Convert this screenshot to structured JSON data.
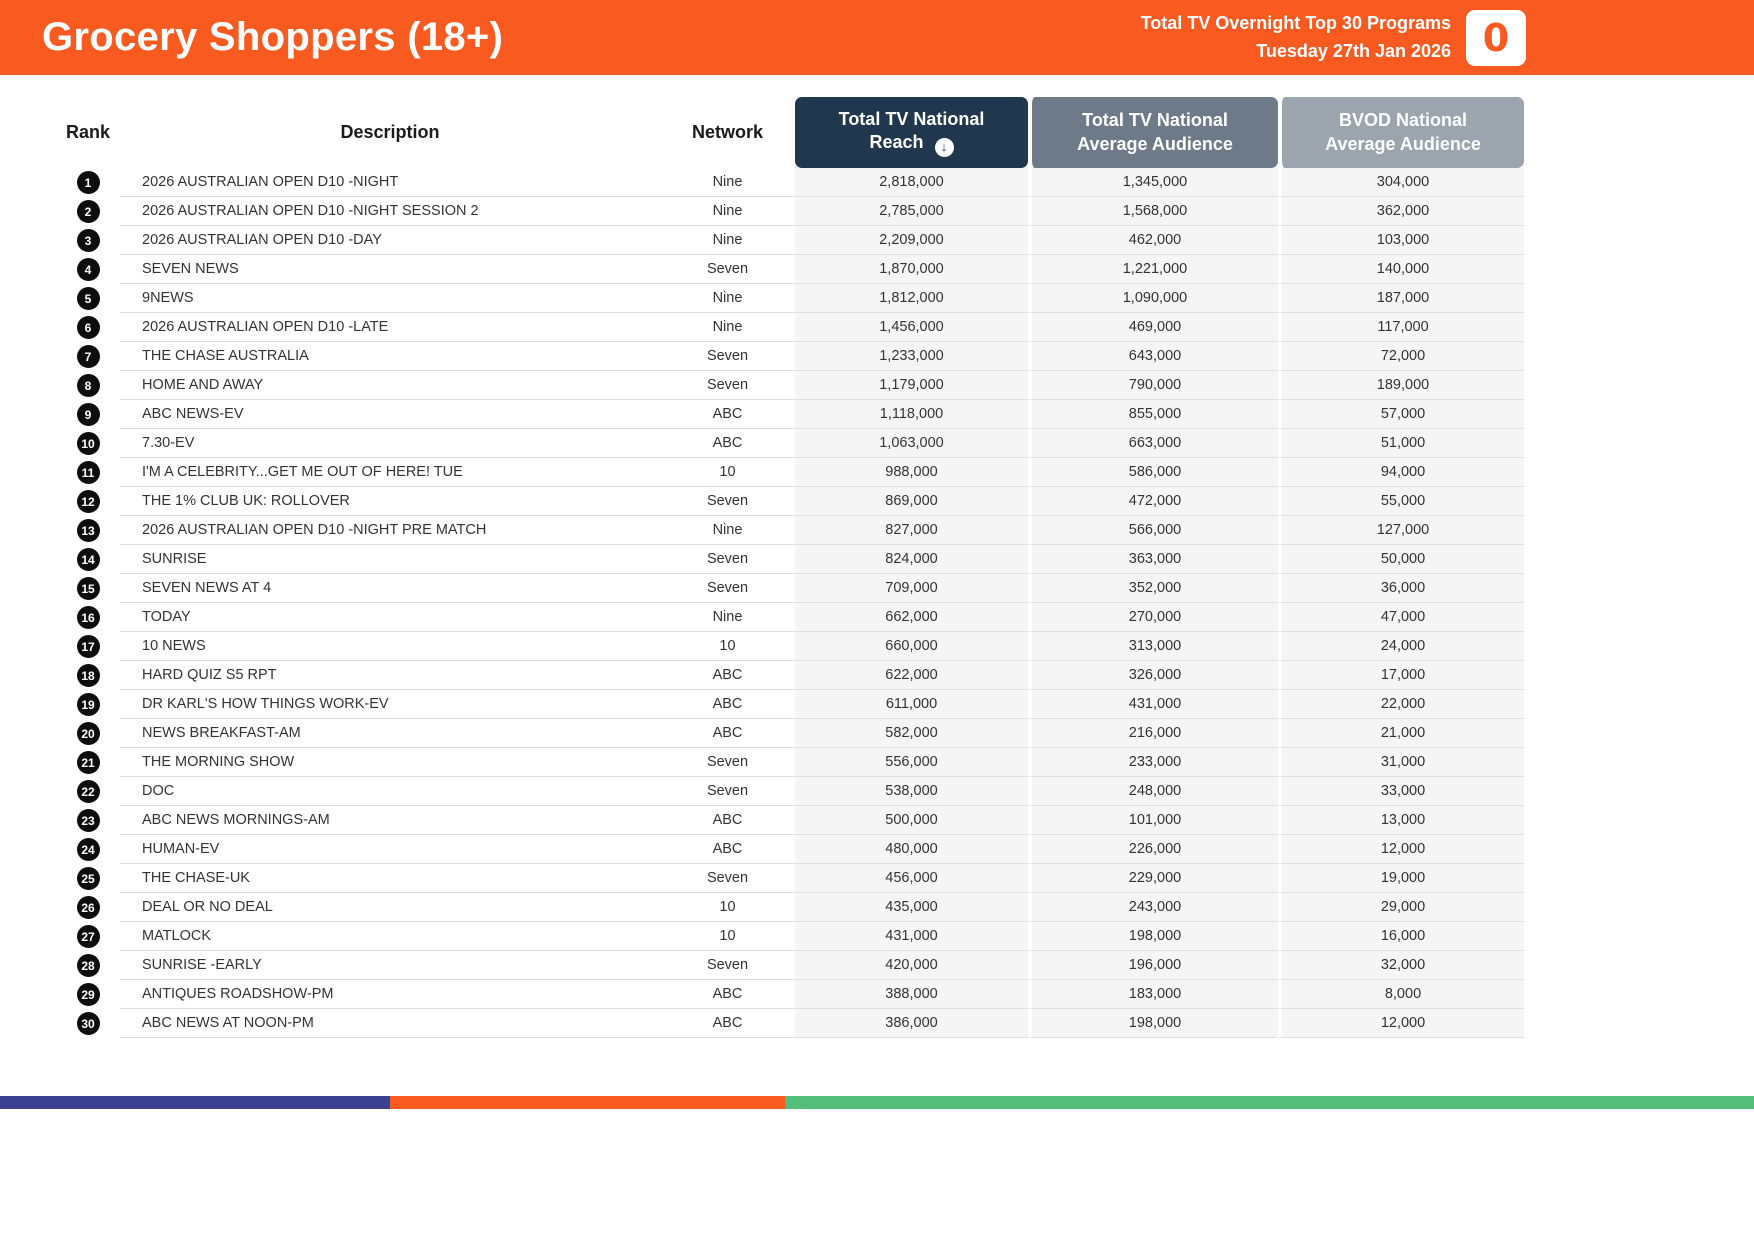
{
  "header": {
    "title": "Grocery Shoppers (18+)",
    "subtitle_line1": "Total TV Overnight Top 30 Programs",
    "subtitle_line2": "Tuesday 27th Jan 2026",
    "logo_text": "0"
  },
  "colors": {
    "brand_orange": "#F85A1F",
    "reach_header": "#21374D",
    "avg_header": "#6E7A88",
    "bvod_header": "#9CA4AD",
    "footer_navy": "#3A3F90",
    "footer_green": "#53BF7A",
    "rank_badge": "#0D0D0D",
    "numeric_column_bg": "#F5F5F6"
  },
  "table": {
    "sort_icon_glyph": "↓",
    "columns": {
      "rank": "Rank",
      "description": "Description",
      "network": "Network",
      "reach": "Total TV National Reach",
      "avg": "Total TV National Average Audience",
      "bvod": "BVOD National Average Audience"
    },
    "rows": [
      {
        "rank": "1",
        "description": "2026 AUSTRALIAN OPEN D10 -NIGHT",
        "network": "Nine",
        "reach": "2,818,000",
        "avg": "1,345,000",
        "bvod": "304,000"
      },
      {
        "rank": "2",
        "description": "2026 AUSTRALIAN OPEN D10 -NIGHT SESSION 2",
        "network": "Nine",
        "reach": "2,785,000",
        "avg": "1,568,000",
        "bvod": "362,000"
      },
      {
        "rank": "3",
        "description": "2026 AUSTRALIAN OPEN D10 -DAY",
        "network": "Nine",
        "reach": "2,209,000",
        "avg": "462,000",
        "bvod": "103,000"
      },
      {
        "rank": "4",
        "description": "SEVEN NEWS",
        "network": "Seven",
        "reach": "1,870,000",
        "avg": "1,221,000",
        "bvod": "140,000"
      },
      {
        "rank": "5",
        "description": "9NEWS",
        "network": "Nine",
        "reach": "1,812,000",
        "avg": "1,090,000",
        "bvod": "187,000"
      },
      {
        "rank": "6",
        "description": "2026 AUSTRALIAN OPEN D10 -LATE",
        "network": "Nine",
        "reach": "1,456,000",
        "avg": "469,000",
        "bvod": "117,000"
      },
      {
        "rank": "7",
        "description": "THE CHASE AUSTRALIA",
        "network": "Seven",
        "reach": "1,233,000",
        "avg": "643,000",
        "bvod": "72,000"
      },
      {
        "rank": "8",
        "description": "HOME AND AWAY",
        "network": "Seven",
        "reach": "1,179,000",
        "avg": "790,000",
        "bvod": "189,000"
      },
      {
        "rank": "9",
        "description": "ABC NEWS-EV",
        "network": "ABC",
        "reach": "1,118,000",
        "avg": "855,000",
        "bvod": "57,000"
      },
      {
        "rank": "10",
        "description": "7.30-EV",
        "network": "ABC",
        "reach": "1,063,000",
        "avg": "663,000",
        "bvod": "51,000"
      },
      {
        "rank": "11",
        "description": "I'M A CELEBRITY...GET ME OUT OF HERE! TUE",
        "network": "10",
        "reach": "988,000",
        "avg": "586,000",
        "bvod": "94,000"
      },
      {
        "rank": "12",
        "description": "THE 1% CLUB UK: ROLLOVER",
        "network": "Seven",
        "reach": "869,000",
        "avg": "472,000",
        "bvod": "55,000"
      },
      {
        "rank": "13",
        "description": "2026 AUSTRALIAN OPEN D10 -NIGHT PRE MATCH",
        "network": "Nine",
        "reach": "827,000",
        "avg": "566,000",
        "bvod": "127,000"
      },
      {
        "rank": "14",
        "description": "SUNRISE",
        "network": "Seven",
        "reach": "824,000",
        "avg": "363,000",
        "bvod": "50,000"
      },
      {
        "rank": "15",
        "description": "SEVEN NEWS AT 4",
        "network": "Seven",
        "reach": "709,000",
        "avg": "352,000",
        "bvod": "36,000"
      },
      {
        "rank": "16",
        "description": "TODAY",
        "network": "Nine",
        "reach": "662,000",
        "avg": "270,000",
        "bvod": "47,000"
      },
      {
        "rank": "17",
        "description": "10 NEWS",
        "network": "10",
        "reach": "660,000",
        "avg": "313,000",
        "bvod": "24,000"
      },
      {
        "rank": "18",
        "description": "HARD QUIZ S5 RPT",
        "network": "ABC",
        "reach": "622,000",
        "avg": "326,000",
        "bvod": "17,000"
      },
      {
        "rank": "19",
        "description": "DR KARL'S HOW THINGS WORK-EV",
        "network": "ABC",
        "reach": "611,000",
        "avg": "431,000",
        "bvod": "22,000"
      },
      {
        "rank": "20",
        "description": "NEWS BREAKFAST-AM",
        "network": "ABC",
        "reach": "582,000",
        "avg": "216,000",
        "bvod": "21,000"
      },
      {
        "rank": "21",
        "description": "THE MORNING SHOW",
        "network": "Seven",
        "reach": "556,000",
        "avg": "233,000",
        "bvod": "31,000"
      },
      {
        "rank": "22",
        "description": "DOC",
        "network": "Seven",
        "reach": "538,000",
        "avg": "248,000",
        "bvod": "33,000"
      },
      {
        "rank": "23",
        "description": "ABC NEWS MORNINGS-AM",
        "network": "ABC",
        "reach": "500,000",
        "avg": "101,000",
        "bvod": "13,000"
      },
      {
        "rank": "24",
        "description": "HUMAN-EV",
        "network": "ABC",
        "reach": "480,000",
        "avg": "226,000",
        "bvod": "12,000"
      },
      {
        "rank": "25",
        "description": "THE CHASE-UK",
        "network": "Seven",
        "reach": "456,000",
        "avg": "229,000",
        "bvod": "19,000"
      },
      {
        "rank": "26",
        "description": "DEAL OR NO DEAL",
        "network": "10",
        "reach": "435,000",
        "avg": "243,000",
        "bvod": "29,000"
      },
      {
        "rank": "27",
        "description": "MATLOCK",
        "network": "10",
        "reach": "431,000",
        "avg": "198,000",
        "bvod": "16,000"
      },
      {
        "rank": "28",
        "description": "SUNRISE -EARLY",
        "network": "Seven",
        "reach": "420,000",
        "avg": "196,000",
        "bvod": "32,000"
      },
      {
        "rank": "29",
        "description": "ANTIQUES ROADSHOW-PM",
        "network": "ABC",
        "reach": "388,000",
        "avg": "183,000",
        "bvod": "8,000"
      },
      {
        "rank": "30",
        "description": "ABC NEWS AT NOON-PM",
        "network": "ABC",
        "reach": "386,000",
        "avg": "198,000",
        "bvod": "12,000"
      }
    ]
  }
}
